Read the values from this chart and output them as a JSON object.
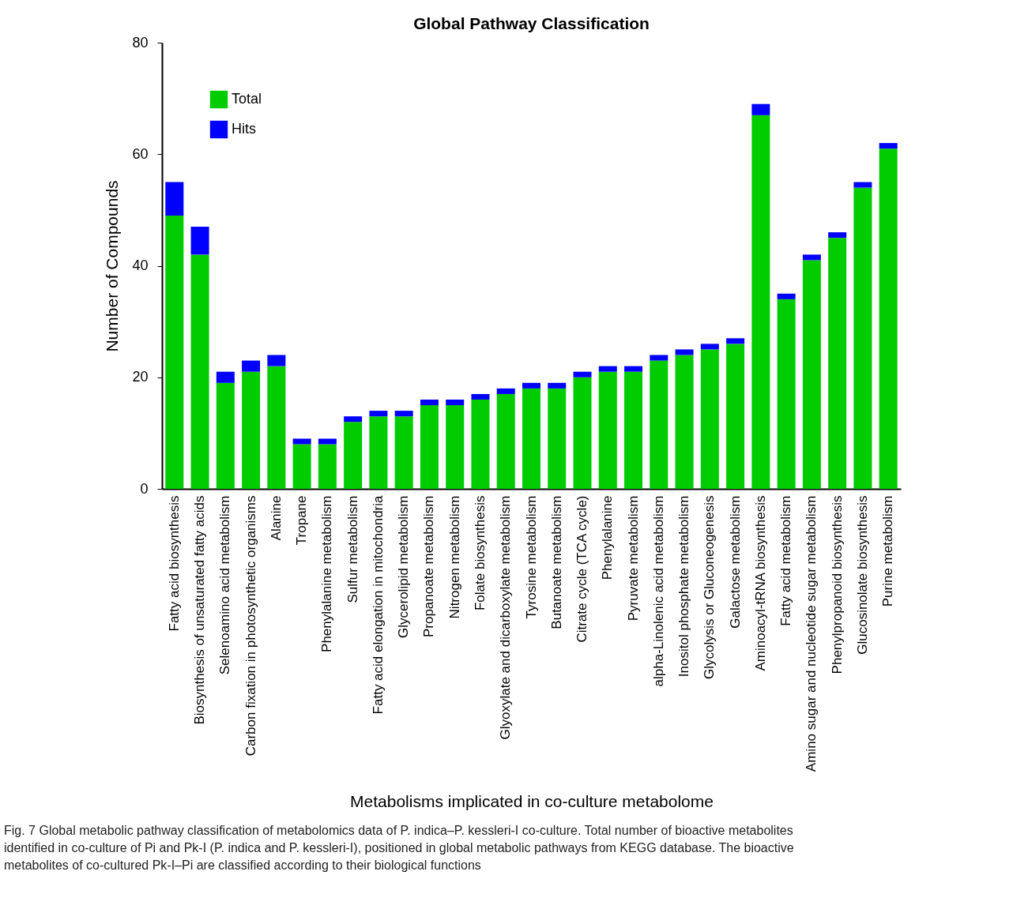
{
  "chart_data": {
    "type": "bar",
    "stacked": true,
    "title": "Global Pathway Classification",
    "xlabel": "Metabolisms implicated in co-culture metabolome",
    "ylabel": "Number of Compounds",
    "categories": [
      "Fatty acid biosynthesis",
      "Biosynthesis of unsaturated fatty acids",
      "Selenoamino acid metabolism",
      "Carbon fixation in photosynthetic organisms",
      "Alanine",
      "Tropane",
      "Phenylalanine metabolism",
      "Sulfur metabolism",
      "Fatty acid elongation in mitochondria",
      "Glycerolipid metabolism",
      "Propanoate metabolism",
      "Nitrogen metabolism",
      "Folate biosynthesis",
      "Glyoxylate and dicarboxylate metabolism",
      "Tyrosine metabolism",
      "Butanoate metabolism",
      "Citrate cycle (TCA cycle)",
      "Phenylalanine",
      "Pyruvate metabolism",
      "alpha-Linolenic acid metabolism",
      "Inositol phosphate metabolism",
      "Glycolysis or Gluconeogenesis",
      "Galactose metabolism",
      "Aminoacyl-tRNA biosynthesis",
      "Fatty acid metabolism",
      "Amino sugar and nucleotide sugar metabolism",
      "Phenylpropanoid biosynthesis",
      "Glucosinolate biosynthesis",
      "Purine metabolism"
    ],
    "series": [
      {
        "name": "Total",
        "color": "#00cc00",
        "values": [
          49,
          42,
          19,
          21,
          22,
          8,
          8,
          12,
          13,
          13,
          15,
          15,
          16,
          17,
          18,
          18,
          20,
          21,
          21,
          23,
          24,
          25,
          26,
          67,
          34,
          41,
          45,
          54,
          61
        ]
      },
      {
        "name": "Hits",
        "color": "#0000ff",
        "values": [
          6,
          5,
          2,
          2,
          2,
          1,
          1,
          1,
          1,
          1,
          1,
          1,
          1,
          1,
          1,
          1,
          1,
          1,
          1,
          1,
          1,
          1,
          1,
          2,
          1,
          1,
          1,
          1,
          1
        ]
      }
    ],
    "ylim": [
      0,
      80
    ],
    "yticks": [
      0,
      20,
      40,
      60,
      80
    ],
    "grid": false,
    "legend": "top left",
    "annotations": [
      "Fig. 7  Global metabolic pathway classification of metabolomics data of P. indica–P. kessleri-I co-culture. Total number of bioactive metabolites identified in co-culture of Pi and Pk-I (P. indica and P. kessleri-I), positioned in global metabolic pathways from KEGG database. The bioactive metabolites of co-cultured Pk-I–Pi are classified according to their biological functions"
    ]
  }
}
